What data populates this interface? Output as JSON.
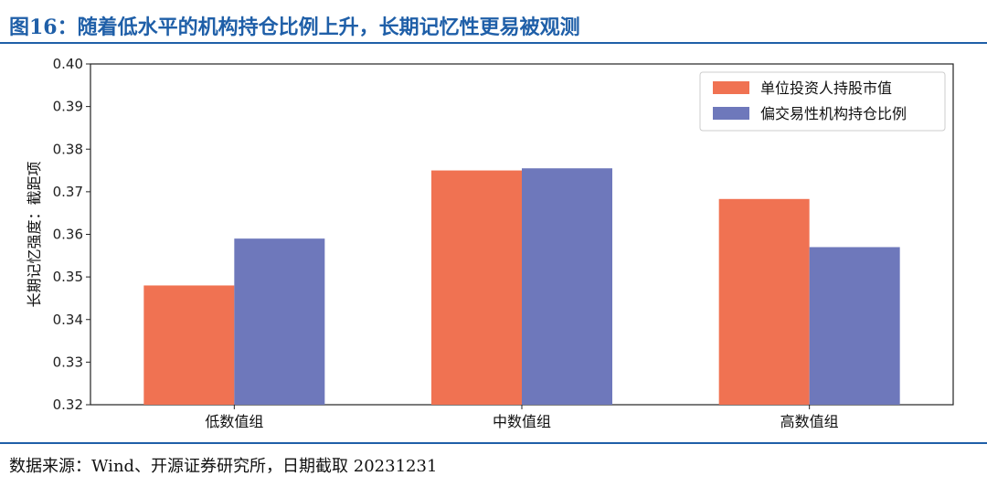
{
  "title": "图16：随着低水平的机构持仓比例上升，长期记忆性更易被观测",
  "source": "数据来源：Wind、开源证券研究所，日期截取 20231231",
  "chart_data": {
    "type": "bar",
    "categories": [
      "低数值组",
      "中数值组",
      "高数值组"
    ],
    "series": [
      {
        "name": "单位投资人持股市值",
        "color": "#F07252",
        "values": [
          0.348,
          0.375,
          0.3683
        ]
      },
      {
        "name": "偏交易性机构持仓比例",
        "color": "#6E78BB",
        "values": [
          0.359,
          0.3755,
          0.357
        ]
      }
    ],
    "ylabel": "长期记忆强度：截距项",
    "xlabel": "",
    "ylim": [
      0.32,
      0.4
    ],
    "yticks": [
      "0.32",
      "0.33",
      "0.34",
      "0.35",
      "0.36",
      "0.37",
      "0.38",
      "0.39",
      "0.40"
    ],
    "legend": "top-right",
    "grid": false
  }
}
